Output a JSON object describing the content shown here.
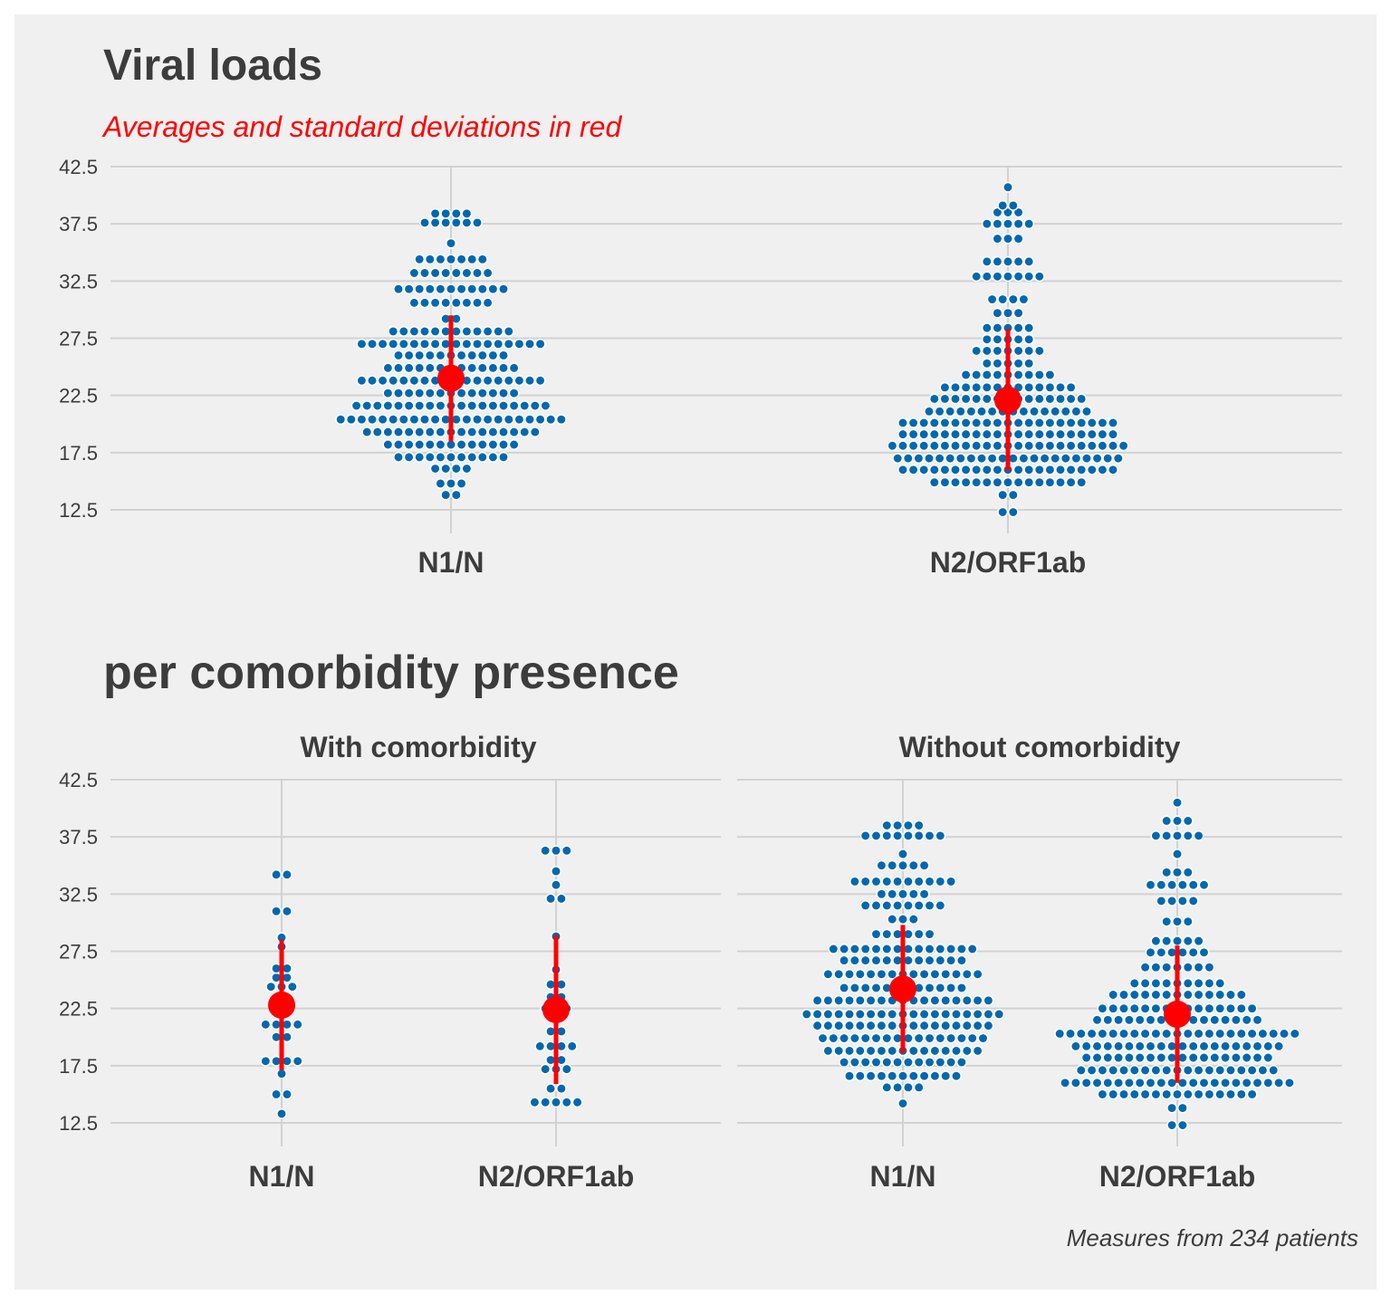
{
  "title": "Viral loads",
  "subtitle": "Averages and standard deviations in red",
  "second_title": "per comorbidity presence",
  "caption": "Measures from 234 patients",
  "colors": {
    "background": "#f0f0f0",
    "grid": "#d2d2d2",
    "dots": "#0068b0",
    "summary": "#ff0000",
    "text": "#3c3c3c"
  },
  "chart_data": [
    {
      "type": "dotplot",
      "title": "Viral loads",
      "subtitle": "Averages and standard deviations in red",
      "categories": [
        "N1/N",
        "N2/ORF1ab"
      ],
      "y_ticks": [
        12.5,
        17.5,
        22.5,
        27.5,
        32.5,
        37.5,
        42.5
      ],
      "ylim": [
        11,
        43.5
      ],
      "grid": true,
      "series": [
        {
          "category": "N1/N",
          "mean": 24.0,
          "sd": 5.5,
          "bins": [
            [
              13.8,
              2
            ],
            [
              14.8,
              3
            ],
            [
              16.1,
              4
            ],
            [
              17.1,
              11
            ],
            [
              18.2,
              13
            ],
            [
              19.3,
              17
            ],
            [
              20.4,
              22
            ],
            [
              21.6,
              19
            ],
            [
              22.7,
              13
            ],
            [
              23.8,
              18
            ],
            [
              24.9,
              13
            ],
            [
              26.0,
              11
            ],
            [
              27.0,
              18
            ],
            [
              28.1,
              12
            ],
            [
              29.2,
              2
            ],
            [
              30.6,
              8
            ],
            [
              31.8,
              11
            ],
            [
              33.2,
              8
            ],
            [
              34.4,
              7
            ],
            [
              35.8,
              1
            ],
            [
              37.6,
              6
            ],
            [
              38.4,
              4
            ]
          ]
        },
        {
          "category": "N2/ORF1ab",
          "mean": 22.1,
          "sd": 6.2,
          "bins": [
            [
              12.3,
              2
            ],
            [
              13.8,
              2
            ],
            [
              14.9,
              15
            ],
            [
              16.0,
              21
            ],
            [
              17.0,
              22
            ],
            [
              18.1,
              23
            ],
            [
              19.1,
              21
            ],
            [
              20.1,
              21
            ],
            [
              21.1,
              16
            ],
            [
              22.2,
              15
            ],
            [
              23.2,
              13
            ],
            [
              24.3,
              9
            ],
            [
              25.3,
              5
            ],
            [
              26.4,
              7
            ],
            [
              27.4,
              5
            ],
            [
              28.4,
              5
            ],
            [
              29.7,
              3
            ],
            [
              30.9,
              4
            ],
            [
              32.9,
              7
            ],
            [
              34.2,
              5
            ],
            [
              36.2,
              3
            ],
            [
              37.5,
              5
            ],
            [
              38.5,
              3
            ],
            [
              39.1,
              2
            ],
            [
              40.7,
              1
            ]
          ]
        }
      ]
    },
    {
      "type": "dotplot",
      "title": "per comorbidity presence",
      "facet": "With comorbidity",
      "categories": [
        "N1/N",
        "N2/ORF1ab"
      ],
      "y_ticks": [
        12.5,
        17.5,
        22.5,
        27.5,
        32.5,
        37.5,
        42.5
      ],
      "ylim": [
        11,
        43.5
      ],
      "grid": true,
      "series": [
        {
          "category": "N1/N",
          "mean": 22.8,
          "sd": 5.7,
          "bins": [
            [
              13.3,
              1
            ],
            [
              15.0,
              2
            ],
            [
              16.8,
              1
            ],
            [
              17.9,
              4
            ],
            [
              20.0,
              2
            ],
            [
              21.1,
              4
            ],
            [
              22.2,
              1
            ],
            [
              23.4,
              2
            ],
            [
              24.4,
              3
            ],
            [
              25.2,
              2
            ],
            [
              26.0,
              2
            ],
            [
              27.9,
              1
            ],
            [
              28.7,
              1
            ],
            [
              31.0,
              2
            ],
            [
              34.2,
              2
            ]
          ]
        },
        {
          "category": "N2/ORF1ab",
          "mean": 22.4,
          "sd": 6.5,
          "bins": [
            [
              14.3,
              5
            ],
            [
              15.5,
              2
            ],
            [
              17.2,
              3
            ],
            [
              18.0,
              2
            ],
            [
              19.2,
              4
            ],
            [
              20.5,
              2
            ],
            [
              21.7,
              2
            ],
            [
              22.5,
              3
            ],
            [
              23.5,
              2
            ],
            [
              24.6,
              2
            ],
            [
              25.9,
              1
            ],
            [
              28.8,
              1
            ],
            [
              32.1,
              2
            ],
            [
              33.3,
              1
            ],
            [
              34.5,
              1
            ],
            [
              36.3,
              3
            ]
          ]
        }
      ]
    },
    {
      "type": "dotplot",
      "title": "per comorbidity presence",
      "facet": "Without comorbidity",
      "categories": [
        "N1/N",
        "N2/ORF1ab"
      ],
      "y_ticks": [
        12.5,
        17.5,
        22.5,
        27.5,
        32.5,
        37.5,
        42.5
      ],
      "ylim": [
        11,
        43.5
      ],
      "grid": true,
      "series": [
        {
          "category": "N1/N",
          "mean": 24.2,
          "sd": 5.6,
          "bins": [
            [
              14.2,
              1
            ],
            [
              15.6,
              4
            ],
            [
              16.6,
              11
            ],
            [
              17.8,
              12
            ],
            [
              18.8,
              15
            ],
            [
              19.9,
              16
            ],
            [
              21.0,
              17
            ],
            [
              22.0,
              19
            ],
            [
              23.2,
              17
            ],
            [
              24.3,
              12
            ],
            [
              25.5,
              15
            ],
            [
              26.7,
              12
            ],
            [
              27.7,
              14
            ],
            [
              29.0,
              6
            ],
            [
              30.3,
              3
            ],
            [
              31.5,
              8
            ],
            [
              32.5,
              5
            ],
            [
              33.6,
              10
            ],
            [
              35.0,
              5
            ],
            [
              36.0,
              1
            ],
            [
              37.6,
              8
            ],
            [
              38.5,
              4
            ]
          ]
        },
        {
          "category": "N2/ORF1ab",
          "mean": 22.0,
          "sd": 6.0,
          "bins": [
            [
              12.3,
              2
            ],
            [
              13.8,
              2
            ],
            [
              15.0,
              15
            ],
            [
              16.0,
              22
            ],
            [
              17.1,
              19
            ],
            [
              18.2,
              18
            ],
            [
              19.2,
              20
            ],
            [
              20.3,
              23
            ],
            [
              21.5,
              16
            ],
            [
              22.5,
              15
            ],
            [
              23.7,
              13
            ],
            [
              24.7,
              9
            ],
            [
              26.1,
              7
            ],
            [
              27.4,
              6
            ],
            [
              28.4,
              5
            ],
            [
              30.1,
              3
            ],
            [
              31.9,
              4
            ],
            [
              33.3,
              6
            ],
            [
              34.4,
              3
            ],
            [
              36.0,
              1
            ],
            [
              37.6,
              5
            ],
            [
              38.9,
              3
            ],
            [
              40.5,
              1
            ]
          ]
        }
      ]
    }
  ]
}
